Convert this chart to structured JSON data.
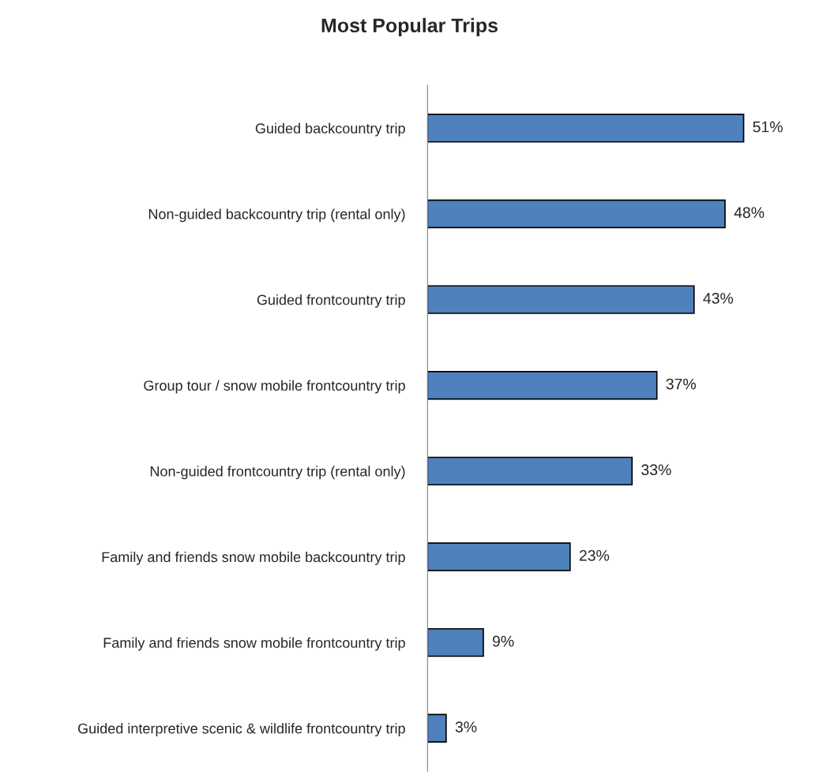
{
  "chart_data": {
    "type": "bar",
    "orientation": "horizontal",
    "title": "Most Popular Trips",
    "categories": [
      "Guided backcountry trip",
      "Non-guided backcountry trip (rental only)",
      "Guided frontcountry trip",
      "Group tour / snow mobile frontcountry trip",
      "Non-guided frontcountry trip (rental only)",
      "Family and friends snow mobile backcountry trip",
      "Family and friends snow mobile frontcountry trip",
      "Guided interpretive scenic & wildlife frontcountry trip"
    ],
    "values": [
      51,
      48,
      43,
      37,
      33,
      23,
      9,
      3
    ],
    "value_labels": [
      "51%",
      "48%",
      "43%",
      "37%",
      "33%",
      "23%",
      "9%",
      "3%"
    ],
    "color": "#4f81bd",
    "tick_labels": "y",
    "grid": false,
    "legend": false
  }
}
